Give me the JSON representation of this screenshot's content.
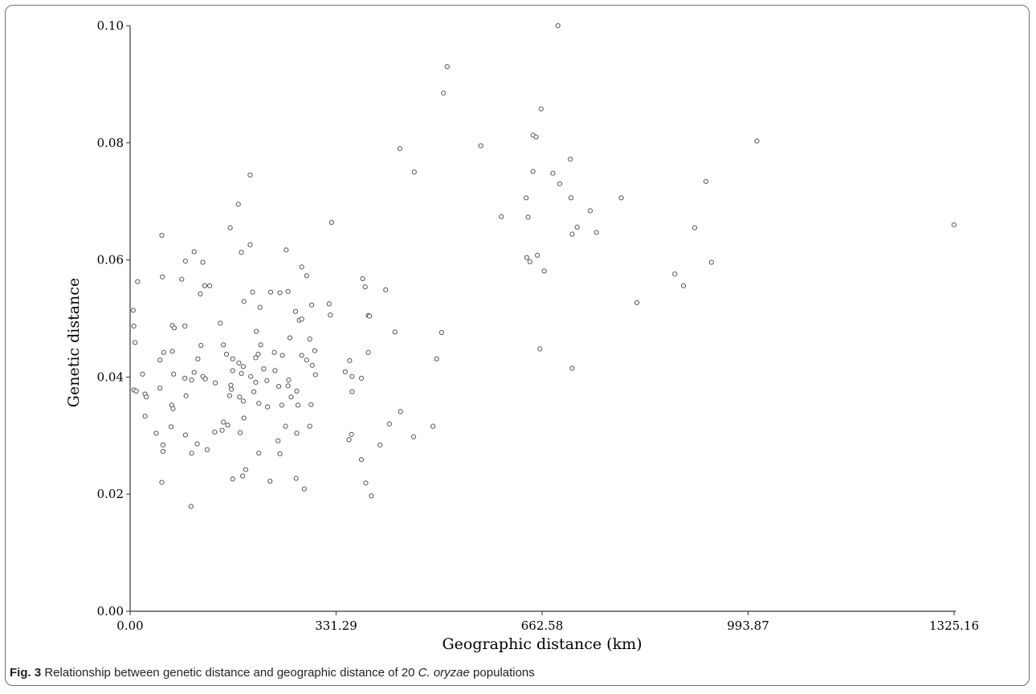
{
  "chart_data": {
    "type": "scatter",
    "title": "",
    "xlabel": "Geographic distance (km)",
    "ylabel": "Genetic distance",
    "xlim": [
      0,
      1325.16
    ],
    "ylim": [
      0,
      0.1
    ],
    "x_ticks": [
      "0.00",
      "331.29",
      "662.58",
      "993.87",
      "1325.16"
    ],
    "y_ticks": [
      "0.00",
      "0.02",
      "0.04",
      "0.06",
      "0.08",
      "0.10"
    ],
    "grid": false,
    "legend": "none",
    "colors": {
      "marker_stroke": "#555555",
      "axis": "#333333",
      "frame": "#6d6e71"
    },
    "points": [
      [
        688,
        0.1
      ],
      [
        510,
        0.093
      ],
      [
        504,
        0.0885
      ],
      [
        661,
        0.0858
      ],
      [
        648,
        0.0813
      ],
      [
        653,
        0.081
      ],
      [
        1008,
        0.0803
      ],
      [
        564,
        0.0795
      ],
      [
        434,
        0.079
      ],
      [
        708,
        0.0772
      ],
      [
        648,
        0.0751
      ],
      [
        457,
        0.075
      ],
      [
        193,
        0.0745
      ],
      [
        680,
        0.0748
      ],
      [
        691,
        0.073
      ],
      [
        926,
        0.0734
      ],
      [
        790,
        0.0706
      ],
      [
        637,
        0.0706
      ],
      [
        709,
        0.0706
      ],
      [
        174,
        0.0695
      ],
      [
        740,
        0.0684
      ],
      [
        597,
        0.0674
      ],
      [
        640,
        0.0673
      ],
      [
        324,
        0.0664
      ],
      [
        1325,
        0.066
      ],
      [
        908,
        0.0655
      ],
      [
        161,
        0.0655
      ],
      [
        719,
        0.0656
      ],
      [
        750,
        0.0647
      ],
      [
        711,
        0.0644
      ],
      [
        51,
        0.0642
      ],
      [
        193,
        0.0626
      ],
      [
        251,
        0.0617
      ],
      [
        103,
        0.0614
      ],
      [
        179,
        0.0613
      ],
      [
        655,
        0.0608
      ],
      [
        638,
        0.0604
      ],
      [
        643,
        0.0597
      ],
      [
        935,
        0.0596
      ],
      [
        89,
        0.0598
      ],
      [
        117,
        0.0596
      ],
      [
        666,
        0.0581
      ],
      [
        876,
        0.0576
      ],
      [
        276,
        0.0588
      ],
      [
        284,
        0.0573
      ],
      [
        52,
        0.0571
      ],
      [
        83,
        0.0567
      ],
      [
        374,
        0.0568
      ],
      [
        12,
        0.0563
      ],
      [
        120,
        0.0556
      ],
      [
        128,
        0.0556
      ],
      [
        890,
        0.0556
      ],
      [
        378,
        0.0554
      ],
      [
        411,
        0.0549
      ],
      [
        241,
        0.0544
      ],
      [
        226,
        0.0545
      ],
      [
        254,
        0.0546
      ],
      [
        197,
        0.0545
      ],
      [
        113,
        0.0542
      ],
      [
        815,
        0.0527
      ],
      [
        320,
        0.0525
      ],
      [
        183,
        0.0529
      ],
      [
        292,
        0.0523
      ],
      [
        209,
        0.0519
      ],
      [
        5,
        0.0514
      ],
      [
        266,
        0.0512
      ],
      [
        322,
        0.0506
      ],
      [
        383,
        0.0505
      ],
      [
        385,
        0.0504
      ],
      [
        272,
        0.0497
      ],
      [
        276,
        0.0499
      ],
      [
        6,
        0.0487
      ],
      [
        68,
        0.0488
      ],
      [
        88,
        0.0487
      ],
      [
        145,
        0.0492
      ],
      [
        203,
        0.0478
      ],
      [
        426,
        0.0477
      ],
      [
        501,
        0.0476
      ],
      [
        71,
        0.0484
      ],
      [
        289,
        0.0465
      ],
      [
        257,
        0.0467
      ],
      [
        8,
        0.0459
      ],
      [
        114,
        0.0454
      ],
      [
        150,
        0.0455
      ],
      [
        210,
        0.0455
      ],
      [
        232,
        0.0442
      ],
      [
        297,
        0.0445
      ],
      [
        155,
        0.0439
      ],
      [
        206,
        0.0439
      ],
      [
        54,
        0.0442
      ],
      [
        68,
        0.0444
      ],
      [
        165,
        0.0431
      ],
      [
        202,
        0.0433
      ],
      [
        276,
        0.0437
      ],
      [
        284,
        0.0429
      ],
      [
        245,
        0.0437
      ],
      [
        109,
        0.0431
      ],
      [
        353,
        0.0428
      ],
      [
        48,
        0.0429
      ],
      [
        175,
        0.0424
      ],
      [
        182,
        0.0418
      ],
      [
        215,
        0.0414
      ],
      [
        233,
        0.0411
      ],
      [
        293,
        0.042
      ],
      [
        20,
        0.0405
      ],
      [
        103,
        0.0408
      ],
      [
        165,
        0.0411
      ],
      [
        179,
        0.0406
      ],
      [
        194,
        0.0401
      ],
      [
        298,
        0.0404
      ],
      [
        346,
        0.0409
      ],
      [
        357,
        0.0401
      ],
      [
        372,
        0.0398
      ],
      [
        70,
        0.0405
      ],
      [
        117,
        0.0401
      ],
      [
        202,
        0.0391
      ],
      [
        255,
        0.0395
      ],
      [
        493,
        0.0431
      ],
      [
        383,
        0.0442
      ],
      [
        659,
        0.0448
      ],
      [
        711,
        0.0415
      ],
      [
        88,
        0.0398
      ],
      [
        99,
        0.0395
      ],
      [
        121,
        0.0397
      ],
      [
        137,
        0.039
      ],
      [
        162,
        0.0386
      ],
      [
        220,
        0.0394
      ],
      [
        239,
        0.0384
      ],
      [
        254,
        0.0385
      ],
      [
        90,
        0.0368
      ],
      [
        163,
        0.0379
      ],
      [
        199,
        0.0375
      ],
      [
        268,
        0.0376
      ],
      [
        357,
        0.0375
      ],
      [
        6,
        0.0378
      ],
      [
        10,
        0.0376
      ],
      [
        24,
        0.0371
      ],
      [
        26,
        0.0366
      ],
      [
        48,
        0.0381
      ],
      [
        67,
        0.0352
      ],
      [
        69,
        0.0346
      ],
      [
        160,
        0.0368
      ],
      [
        176,
        0.0366
      ],
      [
        182,
        0.0359
      ],
      [
        207,
        0.0355
      ],
      [
        221,
        0.0349
      ],
      [
        244,
        0.0352
      ],
      [
        259,
        0.0366
      ],
      [
        270,
        0.0352
      ],
      [
        291,
        0.0353
      ],
      [
        24,
        0.0333
      ],
      [
        183,
        0.033
      ],
      [
        150,
        0.0323
      ],
      [
        157,
        0.0318
      ],
      [
        250,
        0.0316
      ],
      [
        289,
        0.0316
      ],
      [
        417,
        0.032
      ],
      [
        435,
        0.0341
      ],
      [
        456,
        0.0298
      ],
      [
        487,
        0.0316
      ],
      [
        66,
        0.0315
      ],
      [
        42,
        0.0304
      ],
      [
        53,
        0.0284
      ],
      [
        89,
        0.0301
      ],
      [
        108,
        0.0286
      ],
      [
        136,
        0.0306
      ],
      [
        148,
        0.0309
      ],
      [
        177,
        0.0305
      ],
      [
        268,
        0.0304
      ],
      [
        238,
        0.0291
      ],
      [
        352,
        0.0293
      ],
      [
        356,
        0.0302
      ],
      [
        402,
        0.0284
      ],
      [
        53,
        0.0273
      ],
      [
        99,
        0.027
      ],
      [
        124,
        0.0276
      ],
      [
        207,
        0.027
      ],
      [
        241,
        0.0269
      ],
      [
        372,
        0.0259
      ],
      [
        186,
        0.0242
      ],
      [
        165,
        0.0226
      ],
      [
        181,
        0.0231
      ],
      [
        225,
        0.0222
      ],
      [
        267,
        0.0227
      ],
      [
        51,
        0.022
      ],
      [
        280,
        0.0209
      ],
      [
        379,
        0.0219
      ],
      [
        388,
        0.0197
      ],
      [
        98,
        0.0179
      ]
    ]
  },
  "caption": {
    "lead": "Fig. 3",
    "text_before": "Relationship between genetic distance and geographic distance of 20",
    "species": "C. oryzae",
    "text_after": "populations"
  }
}
